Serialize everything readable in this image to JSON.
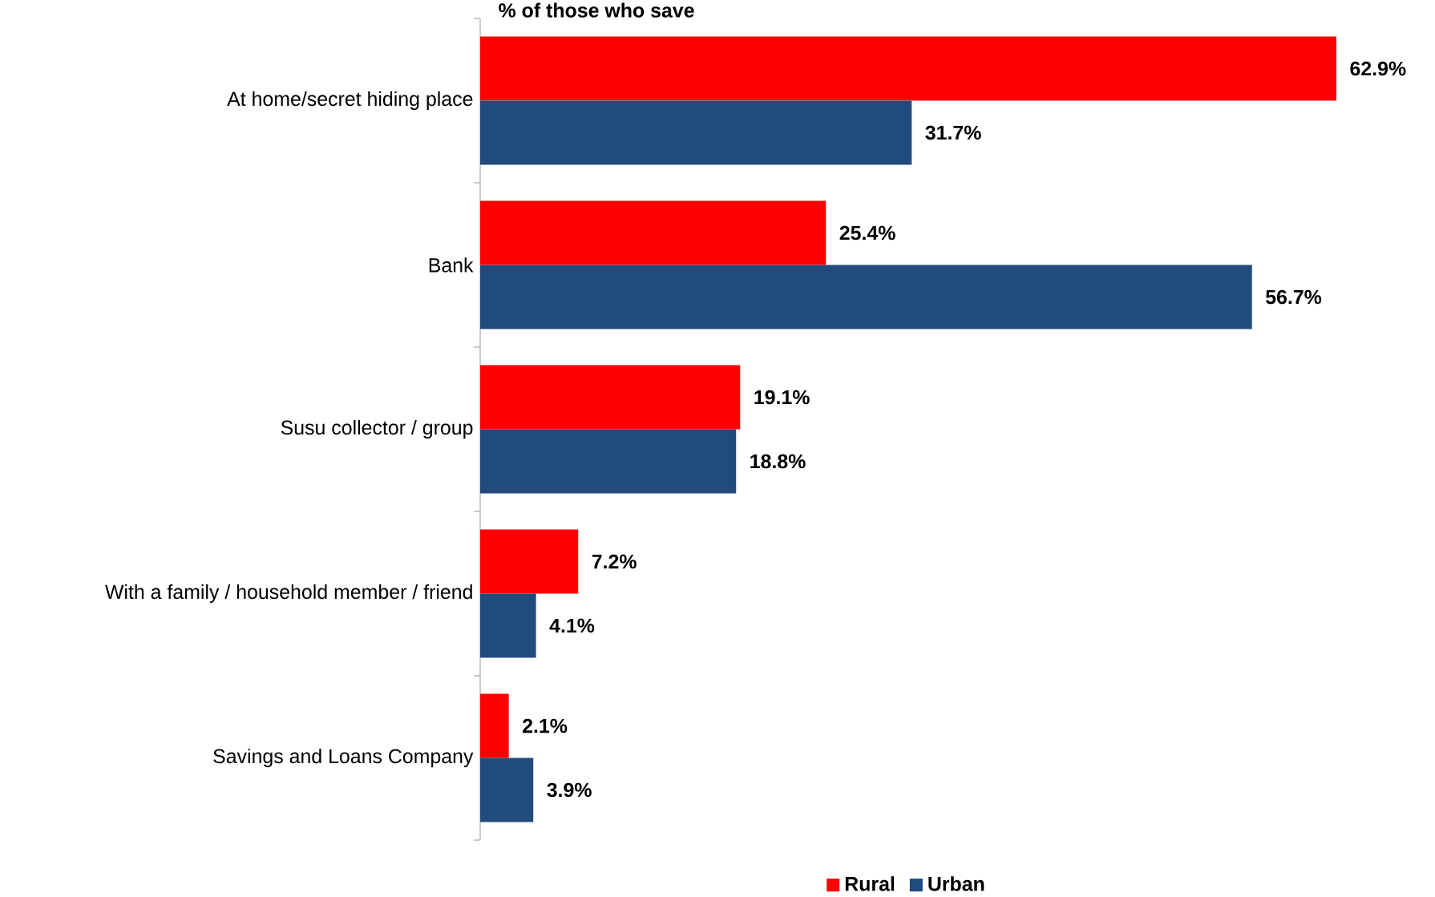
{
  "chart_data": {
    "type": "bar",
    "orientation": "horizontal",
    "title": "% of those who save",
    "categories": [
      "At home/secret hiding place",
      "Bank",
      "Susu collector / group",
      "With a family / household member / friend",
      "Savings and Loans Company"
    ],
    "series": [
      {
        "name": "Rural",
        "color": "#ff0000",
        "values": [
          62.9,
          25.4,
          19.1,
          7.2,
          2.1
        ],
        "value_labels": [
          "62.9%",
          "25.4%",
          "19.1%",
          "7.2%",
          "2.1%"
        ]
      },
      {
        "name": "Urban",
        "color": "#214a7d",
        "values": [
          31.7,
          56.7,
          18.8,
          4.1,
          3.9
        ],
        "value_labels": [
          "31.7%",
          "56.7%",
          "18.8%",
          "4.1%",
          "3.9%"
        ]
      }
    ],
    "xlim": [
      0,
      62.9
    ],
    "tick_labels": "y",
    "legend": "bottom"
  }
}
